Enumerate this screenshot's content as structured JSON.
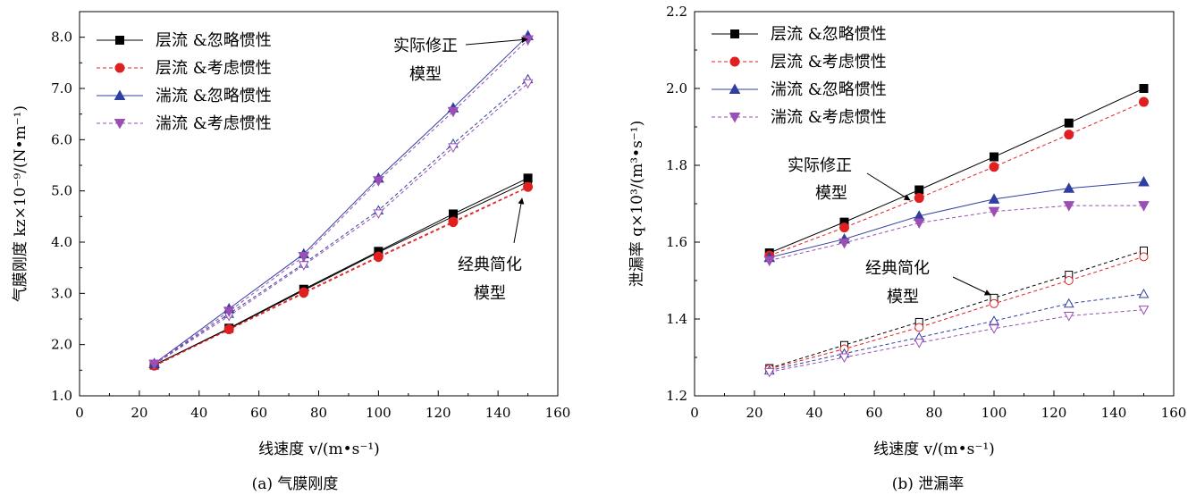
{
  "chart_data": [
    {
      "type": "line",
      "title": "",
      "caption": "(a) 气膜刚度",
      "xlabel": "线速度 v/(m•s⁻¹)",
      "ylabel": "气膜刚度 kz×10⁻⁹/(N•m⁻¹)",
      "xlim": [
        0,
        160
      ],
      "ylim": [
        1.0,
        8.5
      ],
      "xticks": [
        0,
        20,
        40,
        60,
        80,
        100,
        120,
        140,
        160
      ],
      "yticks": [
        1.0,
        2.0,
        3.0,
        4.0,
        5.0,
        6.0,
        7.0,
        8.0
      ],
      "x": [
        25,
        50,
        75,
        100,
        125,
        150
      ],
      "series": [
        {
          "name": "层流 &忽略惯性",
          "color": "#000000",
          "marker": "square",
          "dash": "solid",
          "filled": true,
          "values": [
            1.6,
            2.32,
            3.08,
            3.82,
            4.55,
            5.25
          ]
        },
        {
          "name": "层流 &考虑惯性",
          "color": "#e02020",
          "marker": "circle",
          "dash": "dash",
          "filled": true,
          "values": [
            1.59,
            2.3,
            3.02,
            3.72,
            4.4,
            5.08
          ]
        },
        {
          "name": "湍流 &忽略惯性",
          "color": "#2f3fa0",
          "marker": "triangle-up",
          "dash": "solid",
          "filled": true,
          "values": [
            1.63,
            2.7,
            3.77,
            5.25,
            6.62,
            8.03
          ]
        },
        {
          "name": "湍流 &考虑惯性",
          "color": "#9b4fb5",
          "marker": "triangle-down",
          "dash": "dash",
          "filled": true,
          "values": [
            1.62,
            2.65,
            3.72,
            5.2,
            6.55,
            7.95
          ]
        }
      ],
      "ghost_series": [
        {
          "color": "#000000",
          "marker": "square",
          "dash": "solid",
          "values": [
            1.6,
            2.31,
            3.06,
            3.8,
            4.5,
            5.18
          ]
        },
        {
          "color": "#e02020",
          "marker": "circle",
          "dash": "dash",
          "values": [
            1.58,
            2.29,
            3.0,
            3.7,
            4.38,
            5.07
          ]
        },
        {
          "color": "#2f3fa0",
          "marker": "triangle-up",
          "dash": "dash",
          "values": [
            1.62,
            2.6,
            3.58,
            4.62,
            5.92,
            7.18
          ]
        },
        {
          "color": "#9b4fb5",
          "marker": "triangle-down",
          "dash": "dash",
          "values": [
            1.61,
            2.56,
            3.55,
            4.56,
            5.85,
            7.1
          ]
        }
      ],
      "annotations": [
        {
          "lines": [
            "实际修正",
            "模型"
          ],
          "arrow_to": [
            150,
            8.0
          ]
        },
        {
          "lines": [
            "经典简化",
            "模型"
          ],
          "arrow_to": [
            150,
            5.05
          ]
        }
      ],
      "legend": "top-left"
    },
    {
      "type": "line",
      "title": "",
      "caption": "(b)  泄漏率",
      "xlabel": "线速度 v/(m•s⁻¹)",
      "ylabel": "泄漏率 q×10³/(m³•s⁻¹)",
      "xlim": [
        0,
        160
      ],
      "ylim": [
        1.2,
        2.2
      ],
      "xticks": [
        0,
        20,
        40,
        60,
        80,
        100,
        120,
        140,
        160
      ],
      "yticks": [
        1.2,
        1.4,
        1.6,
        1.8,
        2.0,
        2.2
      ],
      "x": [
        25,
        50,
        75,
        100,
        125,
        150
      ],
      "series": [
        {
          "name": "层流 &忽略惯性",
          "color": "#000000",
          "marker": "square",
          "dash": "solid",
          "filled": true,
          "values": [
            1.572,
            1.652,
            1.736,
            1.822,
            1.91,
            2.0
          ]
        },
        {
          "name": "层流 &考虑惯性",
          "color": "#e02020",
          "marker": "circle",
          "dash": "dash",
          "filled": true,
          "values": [
            1.565,
            1.638,
            1.715,
            1.796,
            1.88,
            1.965
          ]
        },
        {
          "name": "湍流 &忽略惯性",
          "color": "#2f3fa0",
          "marker": "triangle-up",
          "dash": "solid",
          "filled": true,
          "values": [
            1.56,
            1.608,
            1.668,
            1.712,
            1.74,
            1.757
          ]
        },
        {
          "name": "湍流 &考虑惯性",
          "color": "#9b4fb5",
          "marker": "triangle-down",
          "dash": "dash",
          "filled": true,
          "values": [
            1.552,
            1.598,
            1.65,
            1.68,
            1.695,
            1.695
          ]
        }
      ],
      "ghost_series": [
        {
          "color": "#000000",
          "marker": "square",
          "dash": "dash",
          "values": [
            1.272,
            1.332,
            1.392,
            1.455,
            1.515,
            1.578
          ]
        },
        {
          "color": "#e02020",
          "marker": "circle",
          "dash": "dash",
          "values": [
            1.27,
            1.322,
            1.378,
            1.44,
            1.5,
            1.562
          ]
        },
        {
          "color": "#2f3fa0",
          "marker": "triangle-up",
          "dash": "dash",
          "values": [
            1.266,
            1.31,
            1.352,
            1.395,
            1.44,
            1.465
          ]
        },
        {
          "color": "#9b4fb5",
          "marker": "triangle-down",
          "dash": "dash",
          "values": [
            1.262,
            1.3,
            1.338,
            1.375,
            1.408,
            1.424
          ]
        }
      ],
      "annotations": [
        {
          "lines": [
            "实际修正",
            "模型"
          ],
          "arrow_to": [
            100,
            1.79
          ]
        },
        {
          "lines": [
            "经典简化",
            "模型"
          ],
          "arrow_to": [
            100,
            1.455
          ]
        }
      ],
      "legend": "top-left"
    }
  ]
}
